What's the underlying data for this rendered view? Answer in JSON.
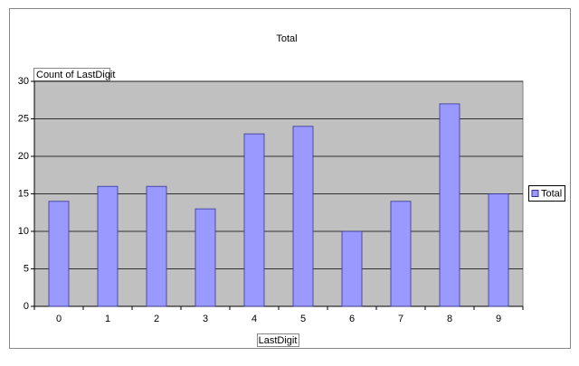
{
  "chart_data": {
    "type": "bar",
    "title": "Total",
    "y_label": "Count of LastDigit",
    "x_label": "LastDigit",
    "categories": [
      "0",
      "1",
      "2",
      "3",
      "4",
      "5",
      "6",
      "7",
      "8",
      "9"
    ],
    "series": [
      {
        "name": "Total",
        "color": "#9999ff",
        "values": [
          14,
          16,
          16,
          13,
          23,
          24,
          10,
          14,
          27,
          15
        ]
      }
    ],
    "ylim": [
      0,
      30
    ],
    "yticks": [
      0,
      5,
      10,
      15,
      20,
      25,
      30
    ],
    "grid": true,
    "legend": "right"
  }
}
